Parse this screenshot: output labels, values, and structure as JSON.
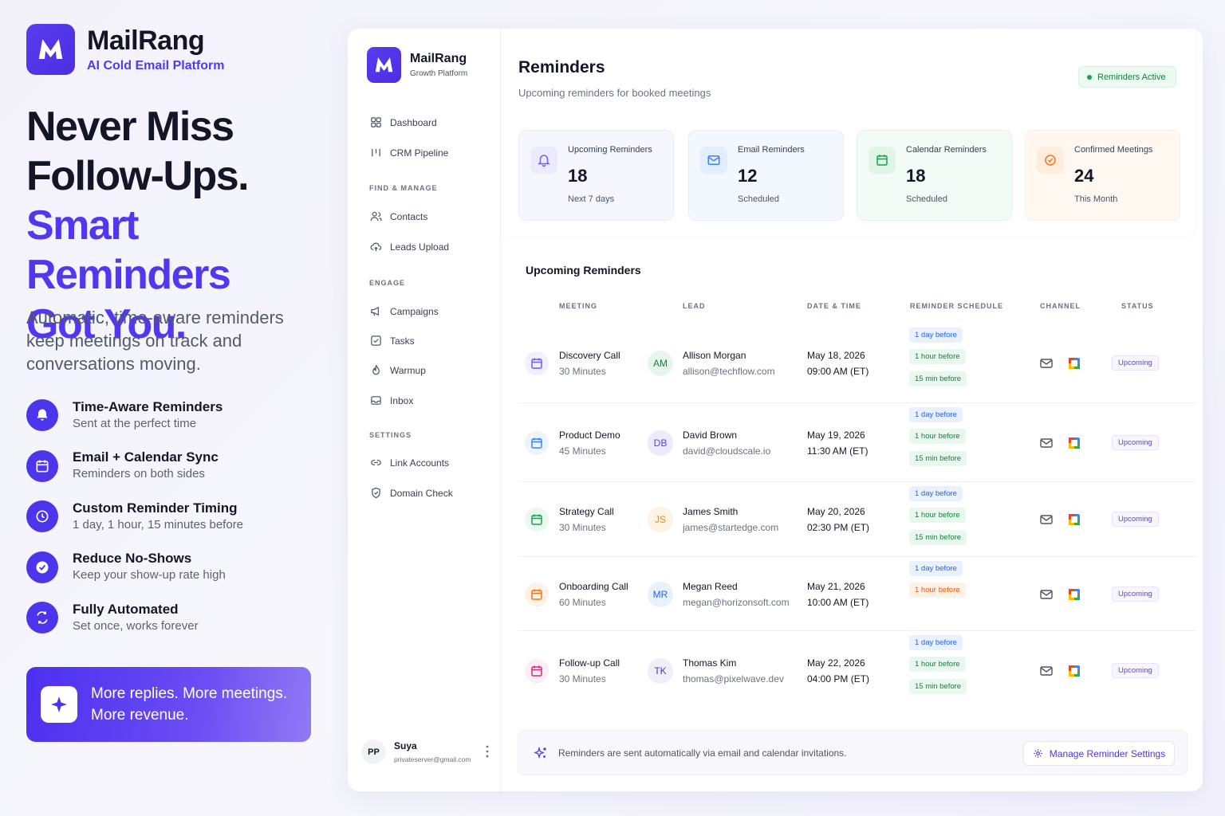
{
  "brand": {
    "name": "MailRang",
    "tagline": "AI Cold Email Platform"
  },
  "hero": {
    "line1": "Never Miss",
    "line2": "Follow-Ups.",
    "line3": "Smart Reminders",
    "line4": "Got You."
  },
  "description": "Automatic, time-aware reminders keep meetings on track and conversations moving.",
  "features": [
    {
      "title": "Time-Aware Reminders",
      "subtitle": "Sent at the perfect time",
      "icon": "bell-icon"
    },
    {
      "title": "Email + Calendar Sync",
      "subtitle": "Reminders on both sides",
      "icon": "calendar-icon"
    },
    {
      "title": "Custom Reminder Timing",
      "subtitle": "1 day, 1 hour, 15 minutes before",
      "icon": "clock-icon"
    },
    {
      "title": "Reduce No-Shows",
      "subtitle": "Keep your show-up rate high",
      "icon": "check-circle-icon"
    },
    {
      "title": "Fully Automated",
      "subtitle": "Set once, works forever",
      "icon": "refresh-icon"
    }
  ],
  "cta": {
    "line1": "More replies. More meetings.",
    "line2": "More revenue.",
    "icon": "sparkle-icon"
  },
  "app": {
    "sidebar": {
      "brand_name": "MailRang",
      "brand_tag": "Growth Platform",
      "items_top": [
        {
          "label": "Dashboard",
          "icon": "grid-icon"
        },
        {
          "label": "CRM Pipeline",
          "icon": "pipeline-icon"
        }
      ],
      "section_find": "FIND & MANAGE",
      "items_find": [
        {
          "label": "Contacts",
          "icon": "users-icon"
        },
        {
          "label": "Leads Upload",
          "icon": "upload-cloud-icon"
        }
      ],
      "section_engage": "ENGAGE",
      "items_engage": [
        {
          "label": "Campaigns",
          "icon": "megaphone-icon"
        },
        {
          "label": "Tasks",
          "icon": "checkbox-icon"
        },
        {
          "label": "Warmup",
          "icon": "flame-icon"
        },
        {
          "label": "Inbox",
          "icon": "inbox-icon"
        }
      ],
      "section_settings": "SETTINGS",
      "items_settings": [
        {
          "label": "Link Accounts",
          "icon": "link-icon"
        },
        {
          "label": "Domain Check",
          "icon": "shield-icon"
        }
      ],
      "user": {
        "initials": "PP",
        "name": "Suya",
        "email": "privateserver@gmail.com"
      }
    },
    "header": {
      "title": "Reminders",
      "subtitle": "Upcoming reminders for booked meetings",
      "status": "Reminders Active"
    },
    "stats": [
      {
        "label": "Upcoming Reminders",
        "value": "18",
        "sub": "Next 7 days",
        "icon": "bell-icon",
        "color": "#6d5cf6",
        "bg": "#f5f5fd",
        "border": "#ececf8"
      },
      {
        "label": "Email Reminders",
        "value": "12",
        "sub": "Scheduled",
        "icon": "mail-icon",
        "color": "#3b82f6",
        "bg": "#f3f7fe",
        "border": "#e7eefb"
      },
      {
        "label": "Calendar Reminders",
        "value": "18",
        "sub": "Scheduled",
        "icon": "calendar-icon",
        "color": "#16a34a",
        "bg": "#f2fbf5",
        "border": "#e3f4e9"
      },
      {
        "label": "Confirmed Meetings",
        "value": "24",
        "sub": "This Month",
        "icon": "check-circle-icon",
        "color": "#f97316",
        "bg": "#fff8f1",
        "border": "#fbeee0"
      }
    ],
    "table": {
      "title": "Upcoming Reminders",
      "columns": [
        "MEETING",
        "LEAD",
        "DATE & TIME",
        "REMINDER SCHEDULE",
        "CHANNEL",
        "STATUS"
      ],
      "rows": [
        {
          "meeting": "Discovery Call",
          "duration": "30 Minutes",
          "icon_color": "#6d5cf6",
          "icon_bg": "#f1f0fe",
          "initials": "AM",
          "av_bg": "#e5f7ea",
          "av_fg": "#15803d",
          "lead": "Allison Morgan",
          "email": "allison@techflow.com",
          "date": "May 18, 2026",
          "time": "09:00 AM (ET)",
          "chips": [
            {
              "t": "1 day before",
              "c": "b"
            },
            {
              "t": "1 hour before",
              "c": "g"
            },
            {
              "t": "15 min before",
              "c": "g"
            }
          ],
          "status": "Upcoming"
        },
        {
          "meeting": "Product Demo",
          "duration": "45 Minutes",
          "icon_color": "#3b82f6",
          "icon_bg": "#eef4fe",
          "initials": "DB",
          "av_bg": "#ecebfd",
          "av_fg": "#5b3ff0",
          "lead": "David Brown",
          "email": "david@cloudscale.io",
          "date": "May 19, 2026",
          "time": "11:30 AM (ET)",
          "chips": [
            {
              "t": "1 day before",
              "c": "b"
            },
            {
              "t": "1 hour before",
              "c": "g"
            },
            {
              "t": "15 min before",
              "c": "g"
            }
          ],
          "status": "Upcoming"
        },
        {
          "meeting": "Strategy Call",
          "duration": "30 Minutes",
          "icon_color": "#16a34a",
          "icon_bg": "#eaf8ef",
          "initials": "JS",
          "av_bg": "#fef3e2",
          "av_fg": "#ea8a0c",
          "lead": "James Smith",
          "email": "james@startedge.com",
          "date": "May 20, 2026",
          "time": "02:30 PM (ET)",
          "chips": [
            {
              "t": "1 day before",
              "c": "b"
            },
            {
              "t": "1 hour before",
              "c": "g"
            },
            {
              "t": "15 min before",
              "c": "g"
            }
          ],
          "status": "Upcoming"
        },
        {
          "meeting": "Onboarding Call",
          "duration": "60 Minutes",
          "icon_color": "#f97316",
          "icon_bg": "#fff3e8",
          "initials": "MR",
          "av_bg": "#e8f1fe",
          "av_fg": "#2563eb",
          "lead": "Megan Reed",
          "email": "megan@horizonsoft.com",
          "date": "May 21, 2026",
          "time": "10:00 AM (ET)",
          "chips": [
            {
              "t": "1 day before",
              "c": "b"
            },
            {
              "t": "1 hour before",
              "c": "o"
            }
          ],
          "status": "Upcoming"
        },
        {
          "meeting": "Follow-up Call",
          "duration": "30 Minutes",
          "icon_color": "#db2777",
          "icon_bg": "#fdeef5",
          "initials": "TK",
          "av_bg": "#efeef9",
          "av_fg": "#4338ca",
          "lead": "Thomas Kim",
          "email": "thomas@pixelwave.dev",
          "date": "May 22, 2026",
          "time": "04:00 PM (ET)",
          "chips": [
            {
              "t": "1 day before",
              "c": "b"
            },
            {
              "t": "1 hour before",
              "c": "g"
            },
            {
              "t": "15 min before",
              "c": "g"
            }
          ],
          "status": "Upcoming"
        }
      ]
    },
    "footer": {
      "text": "Reminders are sent automatically via email and calendar invitations.",
      "button": "Manage Reminder Settings"
    }
  }
}
